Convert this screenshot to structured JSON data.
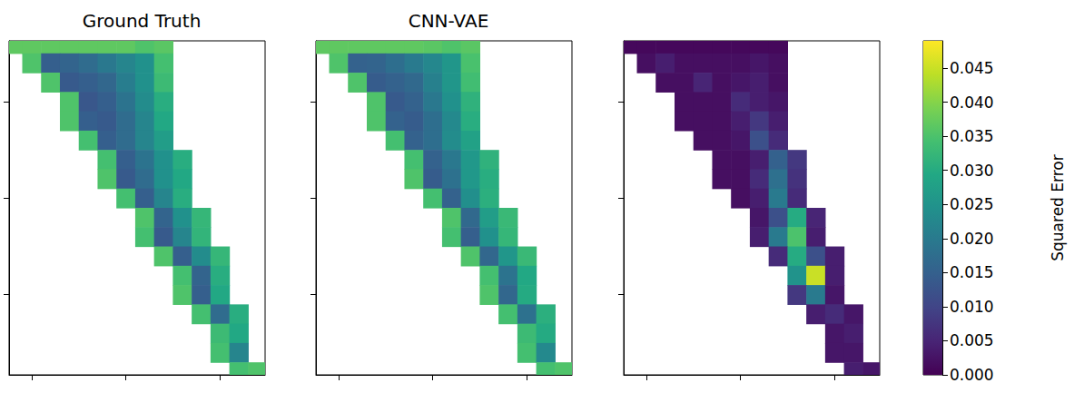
{
  "chart_data": [
    {
      "type": "heatmap",
      "title": "Ground Truth",
      "color": "viridis",
      "tick_labels": false,
      "xlim": [
        -24,
        248
      ],
      "xticks": [
        0,
        100,
        200
      ],
      "ylim": [
        37,
        383
      ],
      "yticks": [
        100,
        200,
        300
      ],
      "clim": [
        0,
        1
      ],
      "x": [
        -20,
        0,
        20,
        40,
        60,
        80,
        100,
        120,
        140,
        160,
        180,
        200,
        220,
        240
      ],
      "y": [
        40,
        60,
        80,
        100,
        120,
        140,
        160,
        180,
        200,
        220,
        240,
        260,
        280,
        300,
        320,
        340,
        360,
        380
      ],
      "cells": [
        [
          0.75,
          0.75,
          0.75,
          0.75,
          0.75,
          0.75,
          0.75,
          0.72,
          0.74,
          null,
          null,
          null,
          null,
          null
        ],
        [
          null,
          0.72,
          0.3,
          0.32,
          0.35,
          0.4,
          0.45,
          0.5,
          0.7,
          null,
          null,
          null,
          null,
          null
        ],
        [
          null,
          null,
          0.72,
          0.28,
          0.3,
          0.33,
          0.42,
          0.5,
          0.68,
          null,
          null,
          null,
          null,
          null
        ],
        [
          null,
          null,
          null,
          0.72,
          0.27,
          0.3,
          0.38,
          0.48,
          0.62,
          null,
          null,
          null,
          null,
          null
        ],
        [
          null,
          null,
          null,
          0.72,
          0.3,
          0.28,
          0.35,
          0.45,
          0.6,
          null,
          null,
          null,
          null,
          null
        ],
        [
          null,
          null,
          null,
          null,
          0.7,
          0.3,
          0.35,
          0.45,
          0.55,
          null,
          null,
          null,
          null,
          null
        ],
        [
          null,
          null,
          null,
          null,
          null,
          0.7,
          0.3,
          0.38,
          0.5,
          0.62,
          null,
          null,
          null,
          null
        ],
        [
          null,
          null,
          null,
          null,
          null,
          0.72,
          0.28,
          0.35,
          0.5,
          0.6,
          null,
          null,
          null,
          null
        ],
        [
          null,
          null,
          null,
          null,
          null,
          null,
          0.7,
          0.3,
          0.45,
          0.62,
          null,
          null,
          null,
          null
        ],
        [
          null,
          null,
          null,
          null,
          null,
          null,
          null,
          0.72,
          0.32,
          0.5,
          0.66,
          null,
          null,
          null
        ],
        [
          null,
          null,
          null,
          null,
          null,
          null,
          null,
          0.7,
          0.28,
          0.45,
          0.65,
          null,
          null,
          null
        ],
        [
          null,
          null,
          null,
          null,
          null,
          null,
          null,
          null,
          0.72,
          0.3,
          0.48,
          0.66,
          null,
          null
        ],
        [
          null,
          null,
          null,
          null,
          null,
          null,
          null,
          null,
          null,
          0.7,
          0.32,
          0.62,
          null,
          null
        ],
        [
          null,
          null,
          null,
          null,
          null,
          null,
          null,
          null,
          null,
          0.72,
          0.3,
          0.6,
          null,
          null
        ],
        [
          null,
          null,
          null,
          null,
          null,
          null,
          null,
          null,
          null,
          null,
          0.7,
          0.35,
          0.62,
          null
        ],
        [
          null,
          null,
          null,
          null,
          null,
          null,
          null,
          null,
          null,
          null,
          null,
          0.68,
          0.6,
          null
        ],
        [
          null,
          null,
          null,
          null,
          null,
          null,
          null,
          null,
          null,
          null,
          null,
          0.7,
          0.45,
          null
        ],
        [
          null,
          null,
          null,
          null,
          null,
          null,
          null,
          null,
          null,
          null,
          null,
          null,
          0.7,
          0.72
        ]
      ]
    },
    {
      "type": "heatmap",
      "title": "CNN-VAE",
      "color": "viridis",
      "tick_labels": false,
      "xlim": [
        -24,
        248
      ],
      "xticks": [
        0,
        100,
        200
      ],
      "ylim": [
        37,
        383
      ],
      "yticks": [
        100,
        200,
        300
      ],
      "clim": [
        0,
        1
      ],
      "x": [
        -20,
        0,
        20,
        40,
        60,
        80,
        100,
        120,
        140,
        160,
        180,
        200,
        220,
        240
      ],
      "y": [
        40,
        60,
        80,
        100,
        120,
        140,
        160,
        180,
        200,
        220,
        240,
        260,
        280,
        300,
        320,
        340,
        360,
        380
      ],
      "cells": [
        [
          0.75,
          0.75,
          0.75,
          0.75,
          0.75,
          0.75,
          0.74,
          0.72,
          0.74,
          null,
          null,
          null,
          null,
          null
        ],
        [
          null,
          0.72,
          0.31,
          0.32,
          0.36,
          0.41,
          0.46,
          0.52,
          0.71,
          null,
          null,
          null,
          null,
          null
        ],
        [
          null,
          null,
          0.72,
          0.29,
          0.31,
          0.34,
          0.43,
          0.52,
          0.69,
          null,
          null,
          null,
          null,
          null
        ],
        [
          null,
          null,
          null,
          0.72,
          0.28,
          0.31,
          0.4,
          0.5,
          0.64,
          null,
          null,
          null,
          null,
          null
        ],
        [
          null,
          null,
          null,
          0.72,
          0.31,
          0.29,
          0.36,
          0.47,
          0.62,
          null,
          null,
          null,
          null,
          null
        ],
        [
          null,
          null,
          null,
          null,
          0.7,
          0.31,
          0.36,
          0.48,
          0.57,
          null,
          null,
          null,
          null,
          null
        ],
        [
          null,
          null,
          null,
          null,
          null,
          0.7,
          0.31,
          0.4,
          0.53,
          0.64,
          null,
          null,
          null,
          null
        ],
        [
          null,
          null,
          null,
          null,
          null,
          0.72,
          0.29,
          0.37,
          0.53,
          0.62,
          null,
          null,
          null,
          null
        ],
        [
          null,
          null,
          null,
          null,
          null,
          null,
          0.7,
          0.31,
          0.49,
          0.63,
          null,
          null,
          null,
          null
        ],
        [
          null,
          null,
          null,
          null,
          null,
          null,
          null,
          0.72,
          0.34,
          0.55,
          0.67,
          null,
          null,
          null
        ],
        [
          null,
          null,
          null,
          null,
          null,
          null,
          null,
          0.7,
          0.3,
          0.5,
          0.66,
          null,
          null,
          null
        ],
        [
          null,
          null,
          null,
          null,
          null,
          null,
          null,
          null,
          0.72,
          0.33,
          0.52,
          0.67,
          null,
          null
        ],
        [
          null,
          null,
          null,
          null,
          null,
          null,
          null,
          null,
          null,
          0.7,
          0.38,
          0.6,
          null,
          null
        ],
        [
          null,
          null,
          null,
          null,
          null,
          null,
          null,
          null,
          null,
          0.72,
          0.33,
          0.61,
          null,
          null
        ],
        [
          null,
          null,
          null,
          null,
          null,
          null,
          null,
          null,
          null,
          null,
          0.7,
          0.37,
          0.63,
          null
        ],
        [
          null,
          null,
          null,
          null,
          null,
          null,
          null,
          null,
          null,
          null,
          null,
          0.68,
          0.61,
          null
        ],
        [
          null,
          null,
          null,
          null,
          null,
          null,
          null,
          null,
          null,
          null,
          null,
          0.7,
          0.47,
          null
        ],
        [
          null,
          null,
          null,
          null,
          null,
          null,
          null,
          null,
          null,
          null,
          null,
          null,
          0.7,
          0.72
        ]
      ]
    },
    {
      "type": "heatmap",
      "color": "viridis",
      "tick_labels": false,
      "xlim": [
        -24,
        248
      ],
      "xticks": [
        0,
        100,
        200
      ],
      "ylim": [
        37,
        383
      ],
      "yticks": [
        100,
        200,
        300
      ],
      "x": [
        -20,
        0,
        20,
        40,
        60,
        80,
        100,
        120,
        140,
        160,
        180,
        200,
        220,
        240
      ],
      "y": [
        40,
        60,
        80,
        100,
        120,
        140,
        160,
        180,
        200,
        220,
        240,
        260,
        280,
        300,
        320,
        340,
        360,
        380
      ],
      "colorbar": {
        "label": "Squared Error",
        "range": [
          0,
          0.049
        ],
        "ticks": [
          {
            "value": 0,
            "label": "0.000"
          },
          {
            "value": 0.005,
            "label": "0.005"
          },
          {
            "value": 0.01,
            "label": "0.010"
          },
          {
            "value": 0.015,
            "label": "0.015"
          },
          {
            "value": 0.02,
            "label": "0.020"
          },
          {
            "value": 0.025,
            "label": "0.025"
          },
          {
            "value": 0.03,
            "label": "0.030"
          },
          {
            "value": 0.035,
            "label": "0.035"
          },
          {
            "value": 0.04,
            "label": "0.040"
          },
          {
            "value": 0.045,
            "label": "0.045"
          }
        ]
      },
      "cells": [
        [
          0.001,
          0.001,
          0.001,
          0.001,
          0.001,
          0.001,
          0.001,
          0.001,
          0.001,
          null,
          null,
          null,
          null,
          null
        ],
        [
          null,
          0.002,
          0.004,
          0.002,
          0.002,
          0.002,
          0.002,
          0.003,
          0.002,
          null,
          null,
          null,
          null,
          null
        ],
        [
          null,
          null,
          0.002,
          0.002,
          0.005,
          0.002,
          0.003,
          0.004,
          0.002,
          null,
          null,
          null,
          null,
          null
        ],
        [
          null,
          null,
          null,
          0.002,
          0.002,
          0.002,
          0.006,
          0.004,
          0.003,
          null,
          null,
          null,
          null,
          null
        ],
        [
          null,
          null,
          null,
          0.002,
          0.002,
          0.002,
          0.004,
          0.008,
          0.004,
          null,
          null,
          null,
          null,
          null
        ],
        [
          null,
          null,
          null,
          null,
          0.002,
          0.002,
          0.003,
          0.012,
          0.006,
          null,
          null,
          null,
          null,
          null
        ],
        [
          null,
          null,
          null,
          null,
          null,
          0.002,
          0.002,
          0.004,
          0.015,
          0.008,
          null,
          null,
          null,
          null
        ],
        [
          null,
          null,
          null,
          null,
          null,
          0.002,
          0.002,
          0.006,
          0.018,
          0.007,
          null,
          null,
          null,
          null
        ],
        [
          null,
          null,
          null,
          null,
          null,
          null,
          0.002,
          0.004,
          0.02,
          0.006,
          null,
          null,
          null,
          null
        ],
        [
          null,
          null,
          null,
          null,
          null,
          null,
          null,
          0.003,
          0.012,
          0.03,
          0.005,
          null,
          null,
          null
        ],
        [
          null,
          null,
          null,
          null,
          null,
          null,
          null,
          0.004,
          0.02,
          0.035,
          0.004,
          null,
          null,
          null
        ],
        [
          null,
          null,
          null,
          null,
          null,
          null,
          null,
          null,
          0.006,
          0.03,
          0.012,
          0.004,
          null,
          null
        ],
        [
          null,
          null,
          null,
          null,
          null,
          null,
          null,
          null,
          null,
          0.025,
          0.045,
          0.004,
          null,
          null
        ],
        [
          null,
          null,
          null,
          null,
          null,
          null,
          null,
          null,
          null,
          0.008,
          0.02,
          0.003,
          null,
          null
        ],
        [
          null,
          null,
          null,
          null,
          null,
          null,
          null,
          null,
          null,
          null,
          0.004,
          0.006,
          0.003,
          null
        ],
        [
          null,
          null,
          null,
          null,
          null,
          null,
          null,
          null,
          null,
          null,
          null,
          0.003,
          0.004,
          null
        ],
        [
          null,
          null,
          null,
          null,
          null,
          null,
          null,
          null,
          null,
          null,
          null,
          0.003,
          0.003,
          null
        ],
        [
          null,
          null,
          null,
          null,
          null,
          null,
          null,
          null,
          null,
          null,
          null,
          null,
          0.004,
          0.003
        ]
      ]
    }
  ]
}
